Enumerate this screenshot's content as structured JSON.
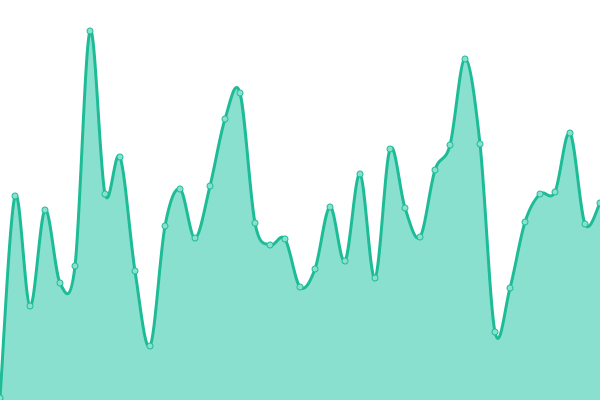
{
  "chart_data": {
    "type": "area",
    "title": "",
    "xlabel": "",
    "ylabel": "",
    "axes_visible": false,
    "grid": false,
    "legend": "none",
    "ylim": [
      0,
      400
    ],
    "x": [
      0,
      1,
      2,
      3,
      4,
      5,
      6,
      7,
      8,
      9,
      10,
      11,
      12,
      13,
      14,
      15,
      16,
      17,
      18,
      19,
      20,
      21,
      22,
      23,
      24,
      25,
      26,
      27,
      28,
      29,
      30,
      31,
      32,
      33,
      34,
      35,
      36,
      37,
      38,
      39,
      40
    ],
    "series": [
      {
        "values": [
          2,
          204,
          94,
          190,
          117,
          134,
          369,
          206,
          243,
          129,
          54,
          174,
          211,
          162,
          214,
          281,
          307,
          177,
          155,
          161,
          113,
          131,
          193,
          139,
          226,
          122,
          251,
          192,
          163,
          230,
          255,
          341,
          256,
          68,
          112,
          178,
          206,
          208,
          267,
          176,
          197
        ]
      }
    ],
    "colors": {
      "fill": "#8ae0cf",
      "stroke": "#1dbc97",
      "point_fill": "#8ae0cf"
    },
    "smooth": true,
    "markers": true
  }
}
